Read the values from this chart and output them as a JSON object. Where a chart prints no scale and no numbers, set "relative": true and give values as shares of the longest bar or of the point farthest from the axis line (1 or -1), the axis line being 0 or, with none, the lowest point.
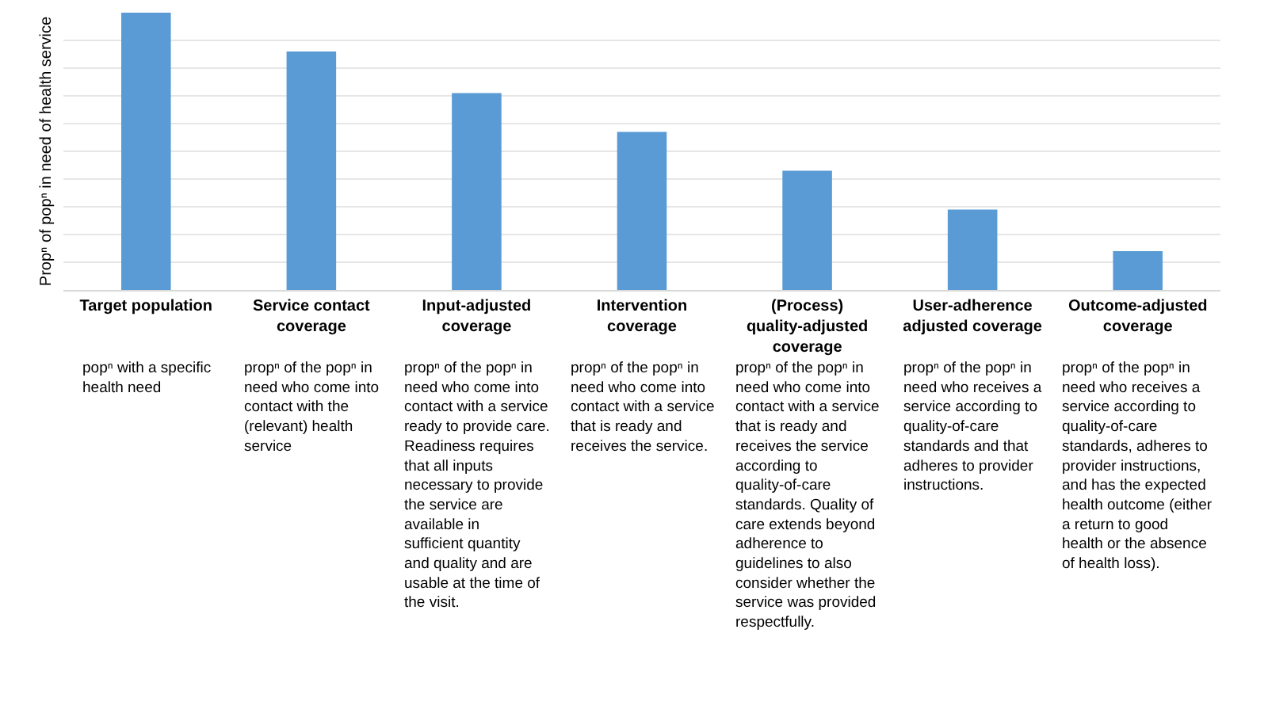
{
  "chart_data": {
    "type": "bar",
    "relative": true,
    "ylabel": "Propⁿ of popⁿ in need of health service",
    "categories": [
      "Target population",
      "Service contact coverage",
      "Input-adjusted coverage",
      "Intervention coverage",
      "(Process) quality-adjusted coverage",
      "User-adherence adjusted coverage",
      "Outcome-adjusted coverage"
    ],
    "values": [
      1,
      0.86,
      0.71,
      0.57,
      0.43,
      0.29,
      0.14
    ],
    "color": "#5b9bd5",
    "grid": "y",
    "annotations": [
      "popⁿ with a specific health need",
      "propⁿ of the popⁿ in need who come into contact with the (relevant) health service",
      "propⁿ of the popⁿ in need who come into contact with a service ready to provide care. Readiness requires that all inputs necessary to provide the service are available in sufficient quantity and quality and are usable at the time of the visit.",
      "propⁿ of the popⁿ in need who come into contact with a service that is ready and receives the service.",
      "propⁿ of the popⁿ in need who come into contact with a service that is ready and receives the service according to quality-of-care standards. Quality of care extends beyond adherence to guidelines to also consider whether the service was provided respectfully.",
      "propⁿ of the popⁿ in need who receives a service according to quality-of-care standards and that adheres to provider instructions.",
      "propⁿ of the popⁿ in need who receives a service according to quality-of-care standards, adheres to provider instructions, and has the expected health outcome (either a return to good health or the absence of health loss)."
    ]
  }
}
